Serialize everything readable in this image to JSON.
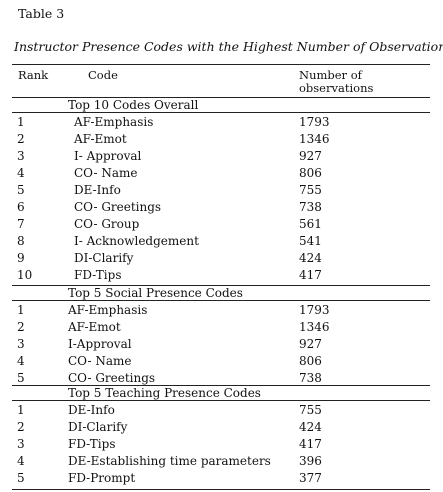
{
  "table_label": "Table 3",
  "title": "Instructor Presence Codes with the Highest Number of Observations",
  "headers": {
    "rank": "Rank",
    "code": "Code",
    "observations": "Number of observations"
  },
  "sections": [
    {
      "title": "Top 10 Codes Overall",
      "rows": [
        {
          "rank": "1",
          "code": "AF-Emphasis",
          "count": "1793"
        },
        {
          "rank": "2",
          "code": "AF-Emot",
          "count": "1346"
        },
        {
          "rank": "3",
          "code": "I- Approval",
          "count": "927"
        },
        {
          "rank": "4",
          "code": "CO- Name",
          "count": "806"
        },
        {
          "rank": "5",
          "code": "DE-Info",
          "count": "755"
        },
        {
          "rank": "6",
          "code": "CO- Greetings",
          "count": "738"
        },
        {
          "rank": "7",
          "code": "CO- Group",
          "count": "561"
        },
        {
          "rank": "8",
          "code": "I- Acknowledgement",
          "count": "541"
        },
        {
          "rank": "9",
          "code": "DI-Clarify",
          "count": "424"
        },
        {
          "rank": "10",
          "code": "FD-Tips",
          "count": "417"
        }
      ]
    },
    {
      "title": "Top 5 Social Presence Codes",
      "rows": [
        {
          "rank": "1",
          "code": "AF-Emphasis",
          "count": "1793"
        },
        {
          "rank": "2",
          "code": "AF-Emot",
          "count": "1346"
        },
        {
          "rank": "3",
          "code": "I-Approval",
          "count": "927"
        },
        {
          "rank": "4",
          "code": "CO- Name",
          "count": "806"
        },
        {
          "rank": "5",
          "code": "CO- Greetings",
          "count": "738"
        }
      ]
    },
    {
      "title": "Top 5 Teaching Presence Codes",
      "rows": [
        {
          "rank": "1",
          "code": "DE-Info",
          "count": "755"
        },
        {
          "rank": "2",
          "code": "DI-Clarify",
          "count": "424"
        },
        {
          "rank": "3",
          "code": "FD-Tips",
          "count": "417"
        },
        {
          "rank": "4",
          "code": "DE-Establishing time parameters",
          "count": "396"
        },
        {
          "rank": "5",
          "code": "FD-Prompt",
          "count": "377"
        }
      ]
    }
  ]
}
